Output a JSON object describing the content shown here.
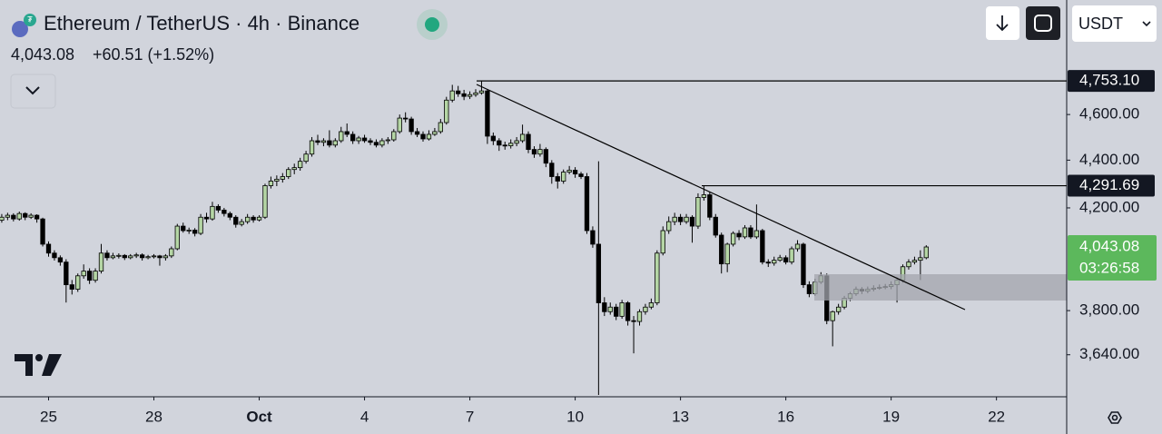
{
  "chart_data": {
    "type": "candlestick",
    "title": "Ethereum / TetherUS · 4h · Binance",
    "last_price_label": "4,043.08",
    "change": "+60.51 (+1.52%)",
    "countdown": "03:26:58",
    "quote_currency": "USDT",
    "log_scale": true,
    "up_color": "#b5d6a5",
    "down_color": "#000000",
    "last_price_color": "#5cb85c",
    "ylim": [
      3494,
      5143
    ],
    "yticks": [
      {
        "value": 3640,
        "label": "3,640.00"
      },
      {
        "value": 3800,
        "label": "3,800.00"
      },
      {
        "value": 4200,
        "label": "4,200.00"
      },
      {
        "value": 4400,
        "label": "4,400.00"
      },
      {
        "value": 4600,
        "label": "4,600.00"
      }
    ],
    "xlim": [
      -0.3,
      182
    ],
    "xticks": [
      {
        "value": 8,
        "label": "25"
      },
      {
        "value": 26,
        "label": "28"
      },
      {
        "value": 44,
        "label": "Oct"
      },
      {
        "value": 62,
        "label": "4"
      },
      {
        "value": 80,
        "label": "7"
      },
      {
        "value": 98,
        "label": "10"
      },
      {
        "value": 116,
        "label": "13"
      },
      {
        "value": 134,
        "label": "16"
      },
      {
        "value": 152,
        "label": "19"
      },
      {
        "value": 170,
        "label": "22"
      }
    ],
    "price_lines": [
      {
        "value": 4753.1,
        "label": "4,753.10"
      },
      {
        "value": 4291.69,
        "label": "4,291.69"
      }
    ],
    "ohlc": [
      [
        4150,
        4175,
        4140,
        4162
      ],
      [
        4162,
        4180,
        4150,
        4170
      ],
      [
        4170,
        4178,
        4145,
        4155
      ],
      [
        4155,
        4185,
        4148,
        4177
      ],
      [
        4177,
        4182,
        4150,
        4162
      ],
      [
        4162,
        4178,
        4155,
        4170
      ],
      [
        4170,
        4174,
        4140,
        4155
      ],
      [
        4155,
        4160,
        4045,
        4054
      ],
      [
        4054,
        4065,
        4005,
        4019
      ],
      [
        4019,
        4030,
        3990,
        4001
      ],
      [
        4001,
        4010,
        3970,
        3984
      ],
      [
        3984,
        3995,
        3830,
        3897
      ],
      [
        3897,
        3915,
        3860,
        3880
      ],
      [
        3880,
        3940,
        3870,
        3931
      ],
      [
        3931,
        3975,
        3920,
        3949
      ],
      [
        3949,
        3960,
        3900,
        3914
      ],
      [
        3914,
        3960,
        3905,
        3949
      ],
      [
        3949,
        4055,
        3940,
        4019
      ],
      [
        4019,
        4030,
        3990,
        4001
      ],
      [
        4001,
        4020,
        3995,
        4008
      ],
      [
        4008,
        4018,
        3998,
        4010
      ],
      [
        4010,
        4015,
        3992,
        4001
      ],
      [
        4001,
        4015,
        3995,
        4008
      ],
      [
        4008,
        4020,
        4000,
        4012
      ],
      [
        4012,
        4018,
        3990,
        4001
      ],
      [
        4001,
        4012,
        3995,
        4005
      ],
      [
        4005,
        4015,
        3998,
        4008
      ],
      [
        4008,
        4012,
        3970,
        4001
      ],
      [
        4001,
        4015,
        3990,
        4008
      ],
      [
        4008,
        4045,
        4000,
        4036
      ],
      [
        4036,
        4135,
        4030,
        4126
      ],
      [
        4126,
        4140,
        4100,
        4108
      ],
      [
        4108,
        4120,
        4095,
        4110
      ],
      [
        4110,
        4118,
        4085,
        4097
      ],
      [
        4097,
        4175,
        4090,
        4162
      ],
      [
        4162,
        4180,
        4140,
        4155
      ],
      [
        4155,
        4225,
        4148,
        4206
      ],
      [
        4206,
        4215,
        4180,
        4191
      ],
      [
        4191,
        4200,
        4165,
        4177
      ],
      [
        4177,
        4185,
        4150,
        4162
      ],
      [
        4162,
        4170,
        4120,
        4133
      ],
      [
        4133,
        4155,
        4125,
        4144
      ],
      [
        4144,
        4175,
        4135,
        4162
      ],
      [
        4162,
        4170,
        4140,
        4151
      ],
      [
        4151,
        4170,
        4145,
        4162
      ],
      [
        4162,
        4300,
        4155,
        4292
      ],
      [
        4292,
        4330,
        4280,
        4311
      ],
      [
        4311,
        4335,
        4290,
        4319
      ],
      [
        4319,
        4345,
        4305,
        4330
      ],
      [
        4330,
        4370,
        4320,
        4360
      ],
      [
        4360,
        4385,
        4340,
        4368
      ],
      [
        4368,
        4410,
        4355,
        4395
      ],
      [
        4395,
        4440,
        4385,
        4426
      ],
      [
        4426,
        4500,
        4415,
        4484
      ],
      [
        4484,
        4510,
        4465,
        4477
      ],
      [
        4477,
        4495,
        4460,
        4484
      ],
      [
        4484,
        4530,
        4455,
        4465
      ],
      [
        4465,
        4495,
        4455,
        4484
      ],
      [
        4484,
        4545,
        4475,
        4524
      ],
      [
        4524,
        4560,
        4500,
        4512
      ],
      [
        4512,
        4525,
        4470,
        4484
      ],
      [
        4484,
        4505,
        4470,
        4496
      ],
      [
        4496,
        4510,
        4475,
        4484
      ],
      [
        4484,
        4495,
        4465,
        4477
      ],
      [
        4477,
        4490,
        4455,
        4465
      ],
      [
        4465,
        4495,
        4455,
        4484
      ],
      [
        4484,
        4500,
        4470,
        4488
      ],
      [
        4488,
        4535,
        4480,
        4524
      ],
      [
        4524,
        4600,
        4515,
        4584
      ],
      [
        4584,
        4610,
        4565,
        4580
      ],
      [
        4580,
        4590,
        4510,
        4524
      ],
      [
        4524,
        4540,
        4500,
        4512
      ],
      [
        4512,
        4525,
        4480,
        4492
      ],
      [
        4492,
        4530,
        4485,
        4512
      ],
      [
        4512,
        4540,
        4505,
        4524
      ],
      [
        4524,
        4580,
        4515,
        4564
      ],
      [
        4564,
        4680,
        4555,
        4665
      ],
      [
        4665,
        4735,
        4655,
        4707
      ],
      [
        4707,
        4730,
        4680,
        4694
      ],
      [
        4694,
        4712,
        4665,
        4682
      ],
      [
        4682,
        4705,
        4670,
        4690
      ],
      [
        4690,
        4715,
        4680,
        4698
      ],
      [
        4698,
        4753.1,
        4690,
        4707
      ],
      [
        4707,
        4715,
        4470,
        4504
      ],
      [
        4504,
        4520,
        4465,
        4484
      ],
      [
        4484,
        4495,
        4440,
        4465
      ],
      [
        4465,
        4480,
        4445,
        4462
      ],
      [
        4462,
        4490,
        4450,
        4473
      ],
      [
        4473,
        4500,
        4460,
        4484
      ],
      [
        4484,
        4555,
        4475,
        4512
      ],
      [
        4512,
        4525,
        4430,
        4446
      ],
      [
        4446,
        4460,
        4410,
        4426
      ],
      [
        4426,
        4470,
        4415,
        4446
      ],
      [
        4446,
        4455,
        4370,
        4387
      ],
      [
        4387,
        4400,
        4300,
        4330
      ],
      [
        4330,
        4345,
        4280,
        4311
      ],
      [
        4311,
        4360,
        4300,
        4349
      ],
      [
        4349,
        4375,
        4340,
        4357
      ],
      [
        4357,
        4370,
        4325,
        4341
      ],
      [
        4341,
        4350,
        4320,
        4330
      ],
      [
        4330,
        4345,
        4095,
        4108
      ],
      [
        4108,
        4125,
        4040,
        4054
      ],
      [
        4054,
        4395,
        3500,
        3829
      ],
      [
        3829,
        3850,
        3780,
        3796
      ],
      [
        3796,
        3830,
        3785,
        3813
      ],
      [
        3813,
        3825,
        3765,
        3779
      ],
      [
        3779,
        3840,
        3770,
        3829
      ],
      [
        3829,
        3835,
        3745,
        3763
      ],
      [
        3763,
        3780,
        3645,
        3760
      ],
      [
        3760,
        3805,
        3745,
        3796
      ],
      [
        3796,
        3825,
        3785,
        3813
      ],
      [
        3813,
        3845,
        3805,
        3829
      ],
      [
        3829,
        4030,
        3820,
        4019
      ],
      [
        4019,
        4125,
        4010,
        4108
      ],
      [
        4108,
        4165,
        4095,
        4144
      ],
      [
        4144,
        4180,
        4130,
        4162
      ],
      [
        4162,
        4175,
        4130,
        4144
      ],
      [
        4144,
        4175,
        4135,
        4162
      ],
      [
        4162,
        4170,
        4060,
        4126
      ],
      [
        4126,
        4260,
        4115,
        4243
      ],
      [
        4243,
        4292,
        4230,
        4254
      ],
      [
        4254,
        4265,
        4150,
        4162
      ],
      [
        4162,
        4175,
        4080,
        4090
      ],
      [
        4090,
        4100,
        3940,
        3977
      ],
      [
        3977,
        4060,
        3945,
        4054
      ],
      [
        4054,
        4105,
        4045,
        4097
      ],
      [
        4097,
        4110,
        4070,
        4083
      ],
      [
        4083,
        4130,
        4075,
        4119
      ],
      [
        4119,
        4130,
        4075,
        4083
      ],
      [
        4083,
        4214,
        4075,
        4108
      ],
      [
        4108,
        4115,
        3975,
        3984
      ],
      [
        3984,
        3995,
        3965,
        3980
      ],
      [
        3980,
        4005,
        3970,
        3991
      ],
      [
        3991,
        4012,
        3985,
        4001
      ],
      [
        4001,
        4010,
        3975,
        3984
      ],
      [
        3984,
        4045,
        3975,
        4036
      ],
      [
        4036,
        4070,
        4025,
        4054
      ],
      [
        4054,
        4060,
        3885,
        3897
      ],
      [
        3897,
        3910,
        3850,
        3863
      ],
      [
        3863,
        3920,
        3855,
        3907
      ],
      [
        3907,
        3945,
        3900,
        3931
      ],
      [
        3931,
        3940,
        3750,
        3763
      ],
      [
        3763,
        3800,
        3670,
        3796
      ],
      [
        3796,
        3825,
        3785,
        3813
      ],
      [
        3813,
        3855,
        3805,
        3846
      ],
      [
        3846,
        3870,
        3835,
        3863
      ],
      [
        3863,
        3890,
        3855,
        3880
      ],
      [
        3880,
        3888,
        3862,
        3873
      ],
      [
        3873,
        3890,
        3865,
        3880
      ],
      [
        3880,
        3895,
        3872,
        3884
      ],
      [
        3884,
        3898,
        3878,
        3887
      ],
      [
        3887,
        3900,
        3880,
        3890
      ],
      [
        3890,
        3910,
        3880,
        3897
      ],
      [
        3897,
        3925,
        3830,
        3914
      ],
      [
        3914,
        3975,
        3905,
        3966
      ],
      [
        3966,
        3995,
        3955,
        3984
      ],
      [
        3984,
        4005,
        3975,
        3991
      ],
      [
        3991,
        4030,
        3915,
        4001
      ],
      [
        4001,
        4050,
        3995,
        4043.08
      ]
    ]
  }
}
